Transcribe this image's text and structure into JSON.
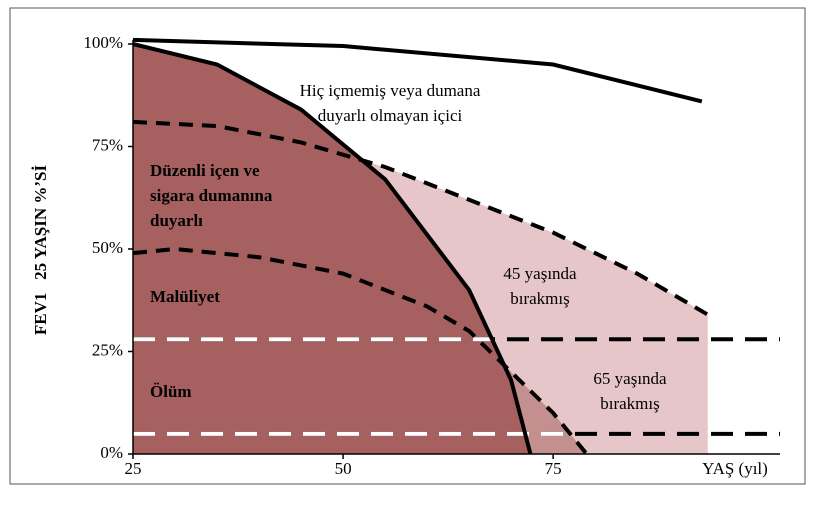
{
  "chart_data": {
    "type": "line",
    "xlabel": "YAŞ (yıl)",
    "ylabel": "FEV1   25 YAŞIN %’Sİ",
    "xlim": [
      25,
      102
    ],
    "ylim": [
      0,
      102
    ],
    "xticks": [
      25,
      50,
      75
    ],
    "yticks": [
      {
        "value": 0,
        "label": "0%"
      },
      {
        "value": 25,
        "label": "25%"
      },
      {
        "value": 50,
        "label": "50%"
      },
      {
        "value": 75,
        "label": "75%"
      },
      {
        "value": 100,
        "label": "100%"
      }
    ],
    "series": [
      {
        "name": [
          "45 yaşında",
          "bırakmış"
        ],
        "color": "#000000",
        "style": "dashed",
        "fill": "#e6c6c9",
        "x": [
          25,
          35,
          45,
          55,
          65,
          75,
          85,
          93.4
        ],
        "values": [
          81,
          80,
          76,
          70,
          62,
          54,
          44,
          34
        ]
      },
      {
        "name": [
          "65 yaşında",
          "bırakmış"
        ],
        "color": "#000000",
        "style": "dashed",
        "fill": "#c4908f",
        "x": [
          25,
          30,
          40,
          50,
          60,
          65,
          70,
          75,
          79
        ],
        "values": [
          49,
          50,
          48,
          44,
          36,
          30,
          20,
          10,
          0
        ]
      },
      {
        "name": [
          "Düzenli içen ve",
          "sigara dumanına",
          "duyarlı"
        ],
        "color": "#000000",
        "style": "solid",
        "fill": "#a5605f",
        "x": [
          25,
          35,
          45,
          55,
          65,
          70,
          72.3
        ],
        "values": [
          100,
          95,
          84,
          67,
          40,
          18,
          0
        ]
      },
      {
        "name": [
          "Hiç içmemiş veya dumana",
          "duyarlı olmayan içici"
        ],
        "color": "#000000",
        "style": "solid",
        "fill": null,
        "x": [
          25,
          50,
          75,
          92.7
        ],
        "values": [
          101,
          99.5,
          95,
          86
        ]
      }
    ],
    "thresholds": [
      {
        "name": "Malüliyet",
        "value": 28
      },
      {
        "name": "Ölüm",
        "value": 4.9
      }
    ]
  }
}
